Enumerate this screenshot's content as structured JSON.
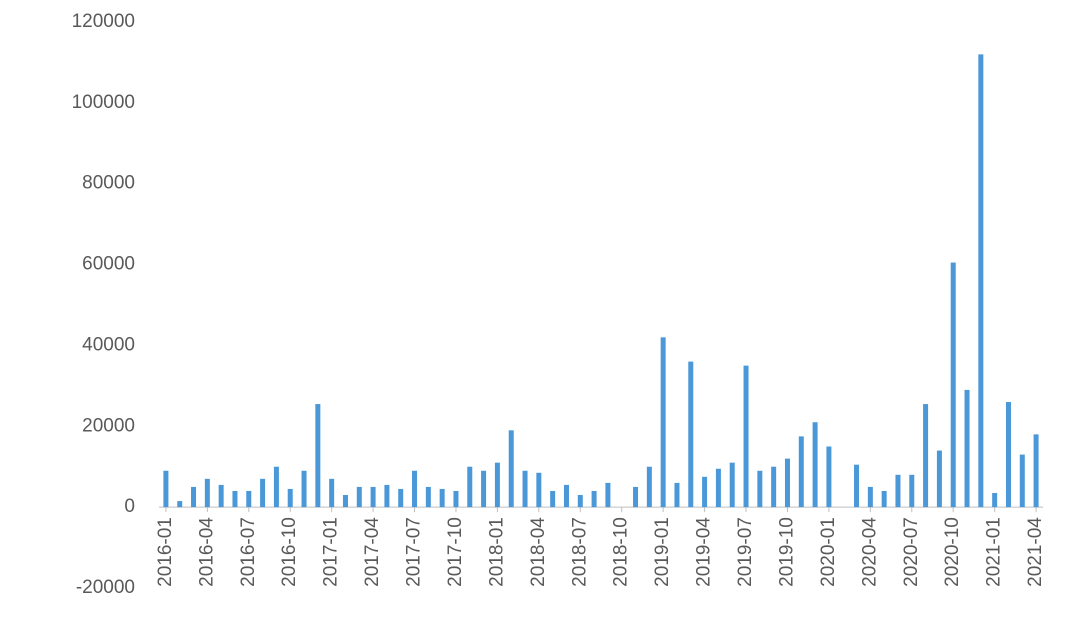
{
  "chart_data": {
    "type": "bar",
    "categories": [
      "2016-01",
      null,
      null,
      "2016-04",
      null,
      null,
      "2016-07",
      null,
      null,
      "2016-10",
      null,
      null,
      "2017-01",
      null,
      null,
      "2017-04",
      null,
      null,
      "2017-07",
      null,
      null,
      "2017-10",
      null,
      null,
      "2018-01",
      null,
      null,
      "2018-04",
      null,
      null,
      "2018-07",
      null,
      null,
      "2018-10",
      null,
      null,
      "2019-01",
      null,
      null,
      "2019-04",
      null,
      null,
      "2019-07",
      null,
      null,
      "2019-10",
      null,
      null,
      "2020-01",
      null,
      null,
      "2020-04",
      null,
      null,
      "2020-07",
      null,
      null,
      "2020-10",
      null,
      null,
      "2021-01",
      null,
      null,
      "2021-04"
    ],
    "values": [
      9000,
      1500,
      5000,
      7000,
      5500,
      4000,
      4000,
      7000,
      10000,
      4500,
      9000,
      25500,
      7000,
      3000,
      5000,
      5000,
      5500,
      4500,
      9000,
      5000,
      4500,
      4000,
      10000,
      9000,
      11000,
      19000,
      9000,
      8500,
      4000,
      5500,
      3000,
      4000,
      6000,
      null,
      5000,
      10000,
      42000,
      6000,
      36000,
      7500,
      9500,
      11000,
      35000,
      9000,
      10000,
      12000,
      17500,
      21000,
      15000,
      null,
      10500,
      5000,
      4000,
      8000,
      8000,
      25500,
      14000,
      60500,
      29000,
      112000,
      3500,
      26000,
      13000,
      18000
    ],
    "color": "#4a98d8",
    "ylim": [
      -20000,
      120000
    ],
    "yticks": [
      -20000,
      0,
      20000,
      40000,
      60000,
      80000,
      100000,
      120000
    ],
    "grid": false
  }
}
